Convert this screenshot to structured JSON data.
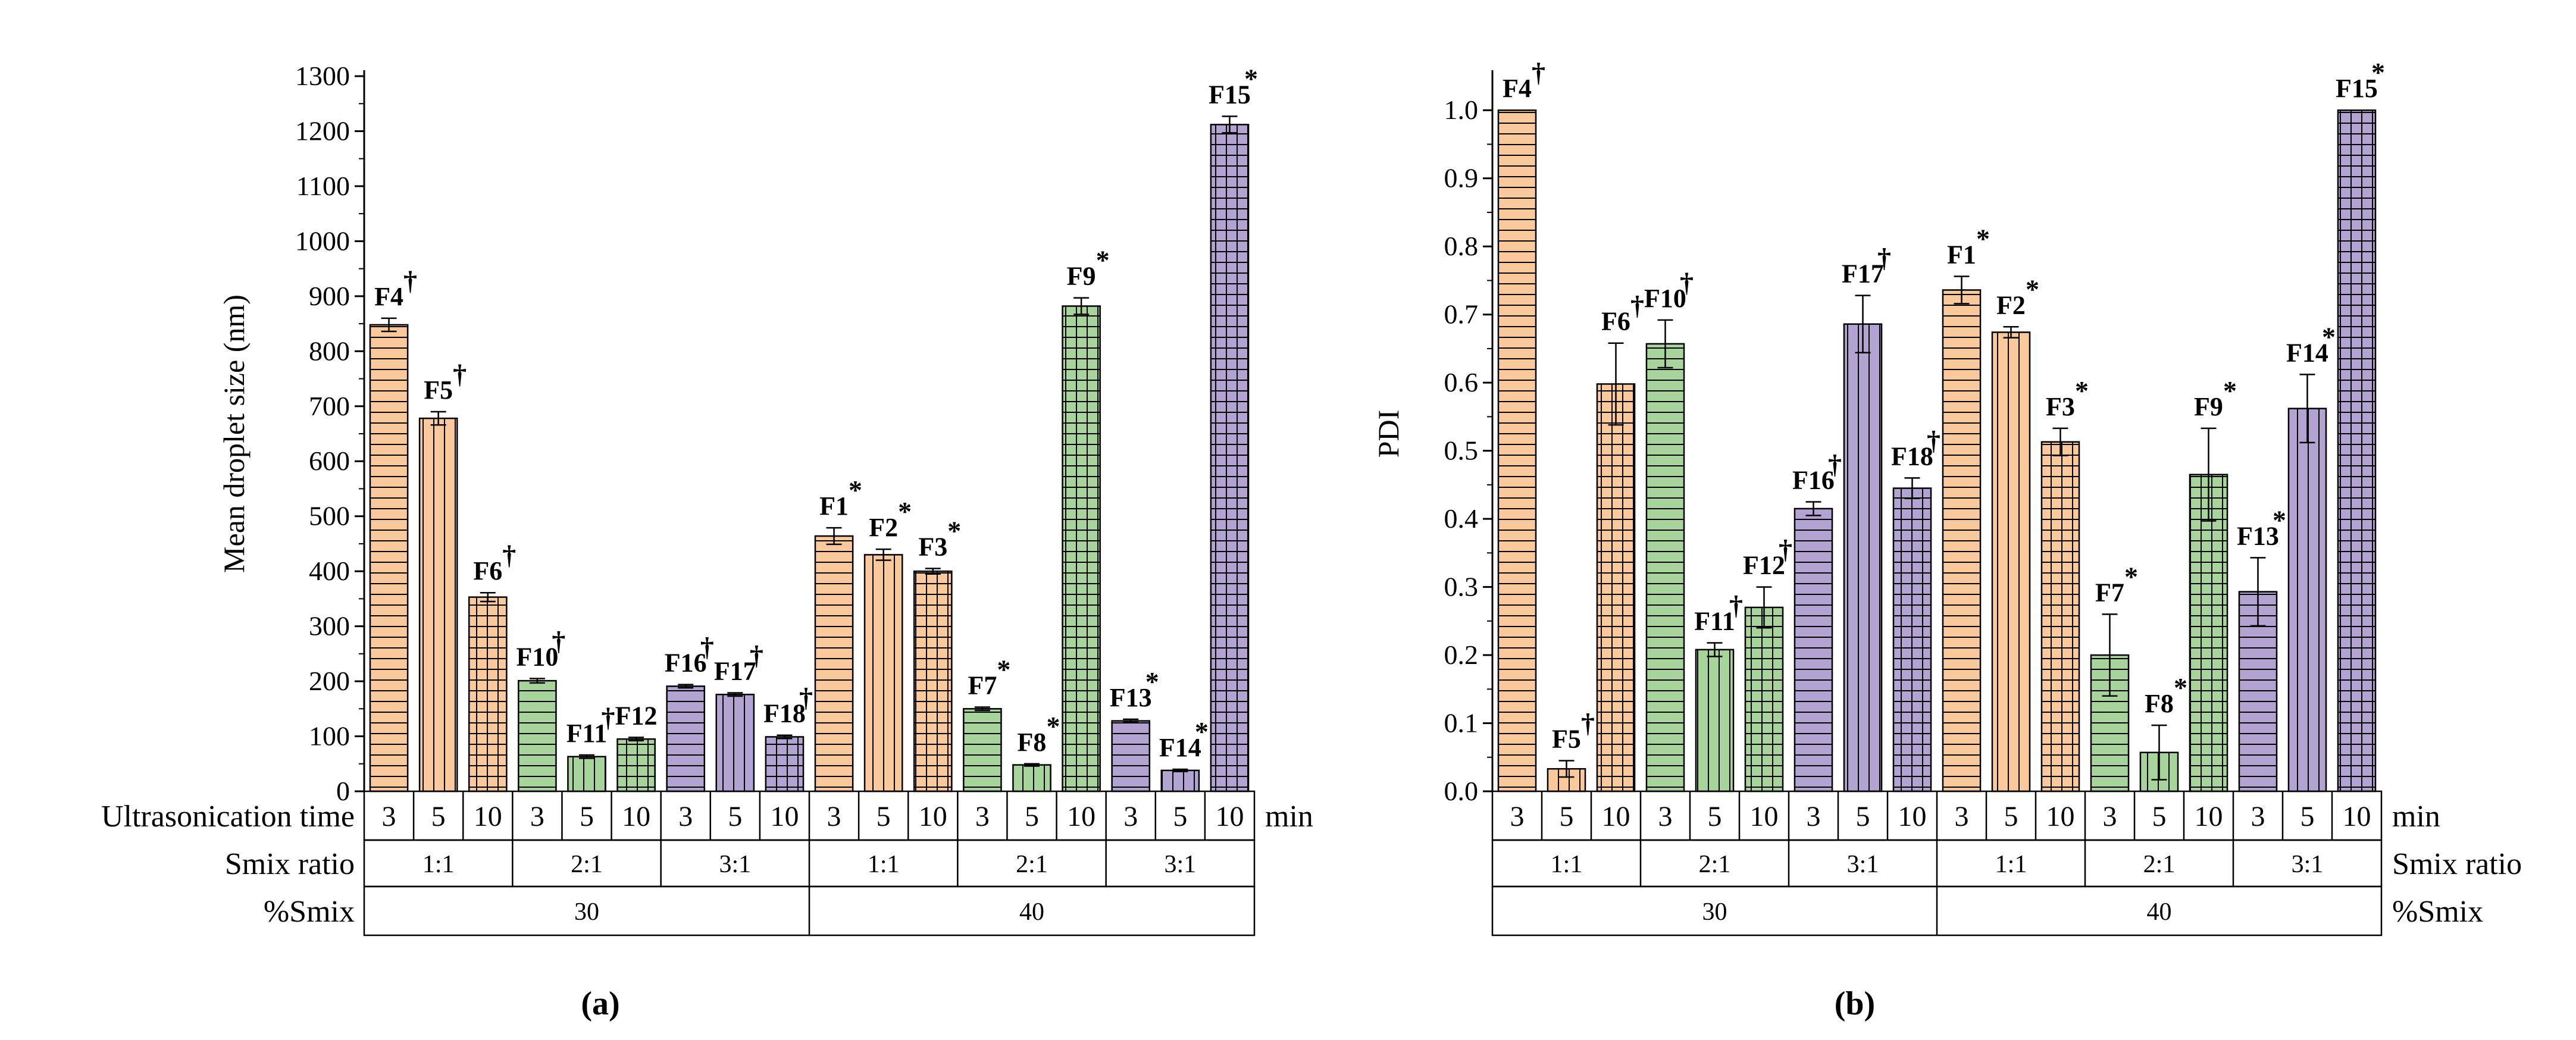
{
  "patterns": {
    "hlines": {
      "type": "hlines"
    },
    "vlines": {
      "type": "vlines"
    },
    "grid": {
      "type": "grid"
    }
  },
  "chart_data": [
    {
      "type": "bar",
      "panel": "(a)",
      "ylabel": "Mean droplet size (nm)",
      "ylim": [
        0,
        1300
      ],
      "yticks": [
        "0",
        "100",
        "200",
        "300",
        "400",
        "500",
        "600",
        "700",
        "800",
        "900",
        "1000",
        "1100",
        "1200",
        "1300"
      ],
      "categories": [
        "3",
        "5",
        "10",
        "3",
        "5",
        "10",
        "3",
        "5",
        "10",
        "3",
        "5",
        "10",
        "3",
        "5",
        "10",
        "3",
        "5",
        "10"
      ],
      "labels": [
        "F4",
        "F5",
        "F6",
        "F10",
        "F11",
        "F12",
        "F16",
        "F17",
        "F18",
        "F1",
        "F2",
        "F3",
        "F7",
        "F8",
        "F9",
        "F13",
        "F14",
        "F15"
      ],
      "values": [
        848,
        678,
        353,
        201,
        63,
        95,
        191,
        176,
        99,
        464,
        430,
        400,
        150,
        48,
        882,
        128,
        38,
        1212
      ],
      "errors": [
        12,
        12,
        8,
        4,
        3,
        3,
        3,
        3,
        3,
        15,
        10,
        5,
        3,
        2,
        15,
        3,
        2,
        15
      ],
      "marks": [
        "†",
        "†",
        "†",
        "†",
        "†",
        "",
        "†",
        "†",
        "†",
        "*",
        "*",
        "*",
        "*",
        "*",
        "*",
        "*",
        "*",
        "*"
      ],
      "colors": [
        "#f9c89b",
        "#f9c89b",
        "#f9c89b",
        "#a6d49a",
        "#a6d49a",
        "#a6d49a",
        "#b3a3d1",
        "#b3a3d1",
        "#b3a3d1",
        "#f9c89b",
        "#f9c89b",
        "#f9c89b",
        "#a6d49a",
        "#a6d49a",
        "#a6d49a",
        "#b3a3d1",
        "#b3a3d1",
        "#b3a3d1"
      ],
      "patterns": [
        "hlines",
        "vlines",
        "grid",
        "hlines",
        "vlines",
        "grid",
        "hlines",
        "vlines",
        "grid",
        "hlines",
        "vlines",
        "grid",
        "hlines",
        "vlines",
        "grid",
        "hlines",
        "vlines",
        "grid"
      ],
      "row1_label": "Ultrasonication time",
      "row1_unit": "min",
      "row2_label": "Smix ratio",
      "row2_groups": [
        "1:1",
        "2:1",
        "3:1",
        "1:1",
        "2:1",
        "3:1"
      ],
      "row3_label": "%Smix",
      "row3_groups": [
        "30",
        "40"
      ]
    },
    {
      "type": "bar",
      "panel": "(b)",
      "ylabel": "PDI",
      "ylim": [
        0,
        1.05
      ],
      "yticks": [
        "0.0",
        "0.1",
        "0.2",
        "0.3",
        "0.4",
        "0.5",
        "0.6",
        "0.7",
        "0.8",
        "0.9",
        "1.0"
      ],
      "categories": [
        "3",
        "5",
        "10",
        "3",
        "5",
        "10",
        "3",
        "5",
        "10",
        "3",
        "5",
        "10",
        "3",
        "5",
        "10",
        "3",
        "5",
        "10"
      ],
      "labels": [
        "F4",
        "F5",
        "F6",
        "F10",
        "F11",
        "F12",
        "F16",
        "F17",
        "F18",
        "F1",
        "F2",
        "F3",
        "F7",
        "F8",
        "F9",
        "F13",
        "F14",
        "F15"
      ],
      "values": [
        1.0,
        0.033,
        0.598,
        0.657,
        0.208,
        0.27,
        0.415,
        0.686,
        0.445,
        0.736,
        0.674,
        0.513,
        0.2,
        0.057,
        0.465,
        0.293,
        0.562,
        1.0
      ],
      "errors": [
        0,
        0.012,
        0.06,
        0.035,
        0.01,
        0.03,
        0.01,
        0.042,
        0.015,
        0.02,
        0.008,
        0.02,
        0.06,
        0.04,
        0.068,
        0.05,
        0.05,
        0
      ],
      "marks": [
        "†",
        "†",
        "†",
        "†",
        "†",
        "†",
        "†",
        "†",
        "†",
        "*",
        "*",
        "*",
        "*",
        "*",
        "*",
        "*",
        "*",
        "*"
      ],
      "colors": [
        "#f9c89b",
        "#f9c89b",
        "#f9c89b",
        "#a6d49a",
        "#a6d49a",
        "#a6d49a",
        "#b3a3d1",
        "#b3a3d1",
        "#b3a3d1",
        "#f9c89b",
        "#f9c89b",
        "#f9c89b",
        "#a6d49a",
        "#a6d49a",
        "#a6d49a",
        "#b3a3d1",
        "#b3a3d1",
        "#b3a3d1"
      ],
      "patterns": [
        "hlines",
        "vlines",
        "grid",
        "hlines",
        "vlines",
        "grid",
        "hlines",
        "vlines",
        "grid",
        "hlines",
        "vlines",
        "grid",
        "hlines",
        "vlines",
        "grid",
        "hlines",
        "vlines",
        "grid"
      ],
      "row1_label": "",
      "row1_unit": "min",
      "row2_label": "Smix ratio",
      "row2_groups": [
        "1:1",
        "2:1",
        "3:1",
        "1:1",
        "2:1",
        "3:1"
      ],
      "row3_label": "%Smix",
      "row3_groups": [
        "30",
        "40"
      ]
    }
  ]
}
